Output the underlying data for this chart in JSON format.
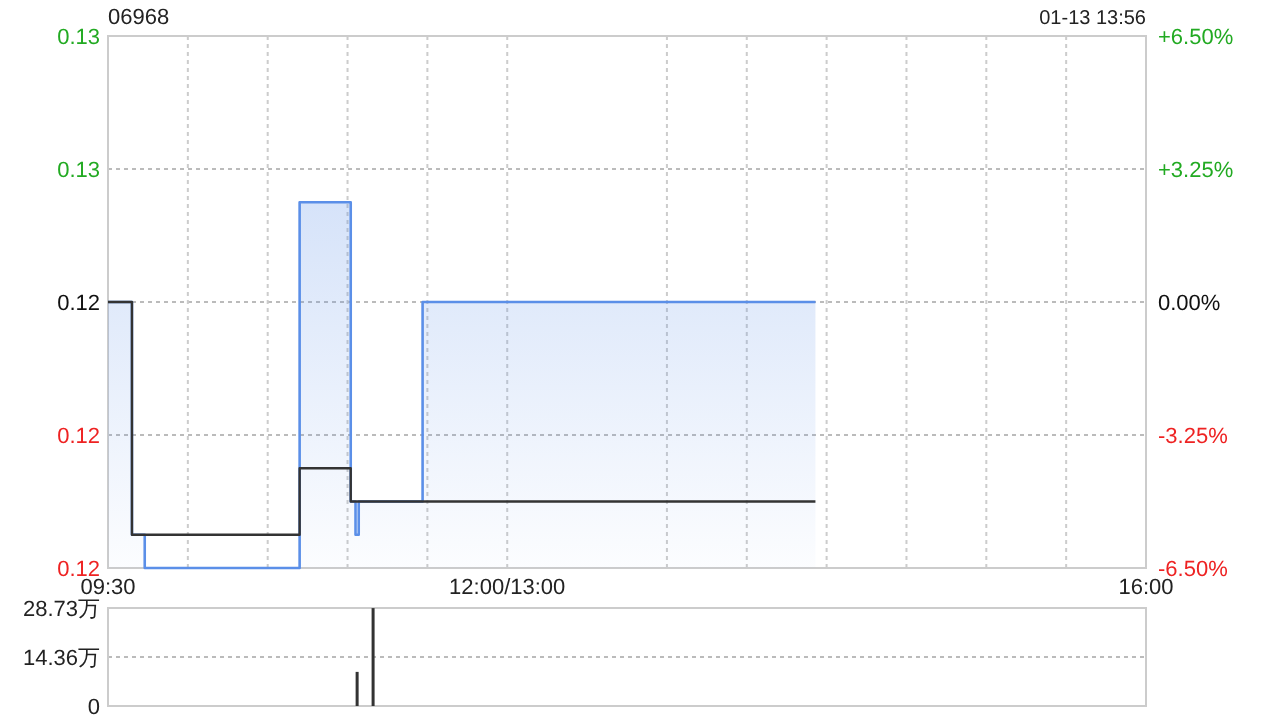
{
  "chart_data": {
    "type": "line",
    "title": "06968",
    "annotations": [
      "01-13 13:56"
    ],
    "xlim": [
      9.5,
      16
    ],
    "xticks": [
      {
        "value": 9.5,
        "label": "09:30"
      },
      {
        "value": 10,
        "label": null
      },
      {
        "value": 10.5,
        "label": null
      },
      {
        "value": 11,
        "label": null
      },
      {
        "value": 11.5,
        "label": null
      },
      {
        "value": 12,
        "label": "12:00/13:00"
      },
      {
        "value": 13,
        "label": null
      },
      {
        "value": 13.5,
        "label": null
      },
      {
        "value": 14,
        "label": null
      },
      {
        "value": 14.5,
        "label": null
      },
      {
        "value": 15,
        "label": null
      },
      {
        "value": 15.5,
        "label": null
      },
      {
        "value": 16,
        "label": "16:00"
      }
    ],
    "ylim": [
      0.115,
      0.131
    ],
    "yticks": [
      {
        "value": 0.131,
        "label": "0.13"
      },
      {
        "value": 0.127,
        "label": "0.13"
      },
      {
        "value": 0.123,
        "label": "0.12"
      },
      {
        "value": 0.119,
        "label": "0.12"
      },
      {
        "value": 0.115,
        "label": "0.12"
      }
    ],
    "y2lim": [
      -6.5,
      6.5
    ],
    "y2ticks": [
      {
        "value": 6.5,
        "label": "+6.50%"
      },
      {
        "value": 3.25,
        "label": "+3.25%"
      },
      {
        "value": 0,
        "label": "0.00%"
      },
      {
        "value": -3.25,
        "label": "-3.25%"
      },
      {
        "value": -6.5,
        "label": "-6.50%"
      }
    ],
    "y3lim": [
      0,
      28.73
    ],
    "y3ticks": [
      {
        "value": 0,
        "label": "0"
      },
      {
        "value": 14.36,
        "label": "14.36万"
      },
      {
        "value": 28.73,
        "label": "28.73万"
      }
    ],
    "grid": true,
    "series": [
      {
        "type": "area",
        "color": "#5b8fe8",
        "x": [
          9.5,
          9.65,
          9.65,
          9.73,
          9.73,
          10.7,
          10.7,
          11.02,
          11.02,
          11.05,
          11.05,
          11.07,
          11.07,
          11.47,
          11.47,
          13.93
        ],
        "values": [
          0.123,
          0.123,
          0.116,
          0.116,
          0.115,
          0.115,
          0.126,
          0.126,
          0.117,
          0.117,
          0.116,
          0.116,
          0.117,
          0.117,
          0.123,
          0.123
        ]
      },
      {
        "type": "line",
        "color": "#333333",
        "x": [
          9.5,
          9.65,
          9.65,
          10.7,
          10.7,
          11.02,
          11.02,
          13.93
        ],
        "values": [
          0.123,
          0.123,
          0.116,
          0.116,
          0.118,
          0.118,
          0.117,
          0.117
        ]
      },
      {
        "type": "bar",
        "axis": "y3",
        "color": "#333333",
        "x": [
          11.06,
          11.16
        ],
        "values": [
          10,
          28.7
        ]
      }
    ]
  }
}
